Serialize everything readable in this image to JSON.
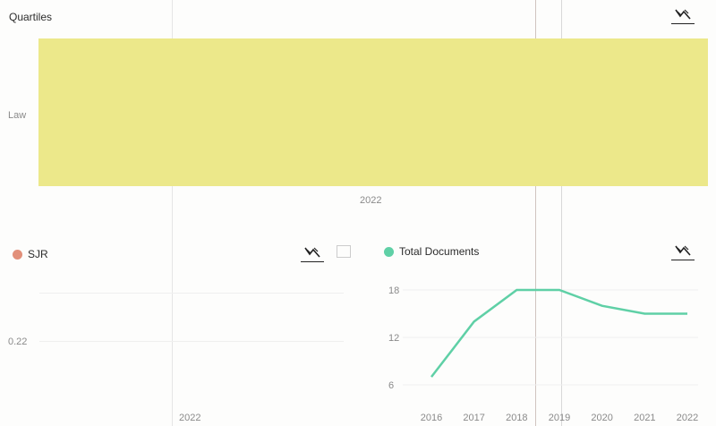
{
  "chart_data": [
    {
      "type": "bar",
      "title": "Quartiles",
      "categories": [
        "2022"
      ],
      "series": [
        {
          "name": "Law",
          "values": [
            1
          ]
        }
      ],
      "color": "#ece88a",
      "legend": "left"
    },
    {
      "type": "line",
      "title": "SJR",
      "x": [
        "2022"
      ],
      "y_ticks": [
        "0.22"
      ],
      "series": [
        {
          "name": "SJR",
          "values": [
            0.22
          ]
        }
      ],
      "color": "#e2907a"
    },
    {
      "type": "line",
      "title": "Total Documents",
      "x": [
        "2016",
        "2017",
        "2018",
        "2019",
        "2020",
        "2021",
        "2022"
      ],
      "y_ticks": [
        "18",
        "12",
        "6"
      ],
      "ylim": [
        6,
        18
      ],
      "series": [
        {
          "name": "Total Documents",
          "values": [
            7,
            14,
            18,
            18,
            16,
            15,
            15
          ]
        }
      ],
      "color": "#5fd0a6"
    }
  ]
}
